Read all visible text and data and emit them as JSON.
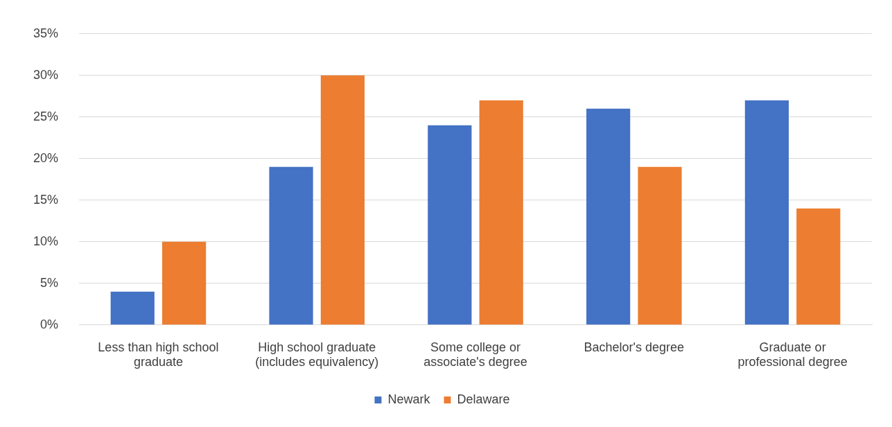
{
  "chart_data": {
    "type": "bar",
    "categories": [
      "Less than high school graduate",
      "High school graduate (includes equivalency)",
      "Some college or associate's degree",
      "Bachelor's degree",
      "Graduate or professional degree"
    ],
    "series": [
      {
        "name": "Newark",
        "color": "#4472c4",
        "values": [
          4,
          19,
          24,
          26,
          27
        ]
      },
      {
        "name": "Delaware",
        "color": "#ed7d31",
        "values": [
          10,
          30,
          27,
          19,
          14
        ]
      }
    ],
    "ylim": [
      0,
      35
    ],
    "yticks": [
      {
        "value": 0,
        "label": "0%"
      },
      {
        "value": 5,
        "label": "5%"
      },
      {
        "value": 10,
        "label": "10%"
      },
      {
        "value": 15,
        "label": "15%"
      },
      {
        "value": 20,
        "label": "20%"
      },
      {
        "value": 25,
        "label": "25%"
      },
      {
        "value": 30,
        "label": "30%"
      },
      {
        "value": 35,
        "label": "35%"
      }
    ],
    "grid": "y",
    "legend": "bottom"
  }
}
